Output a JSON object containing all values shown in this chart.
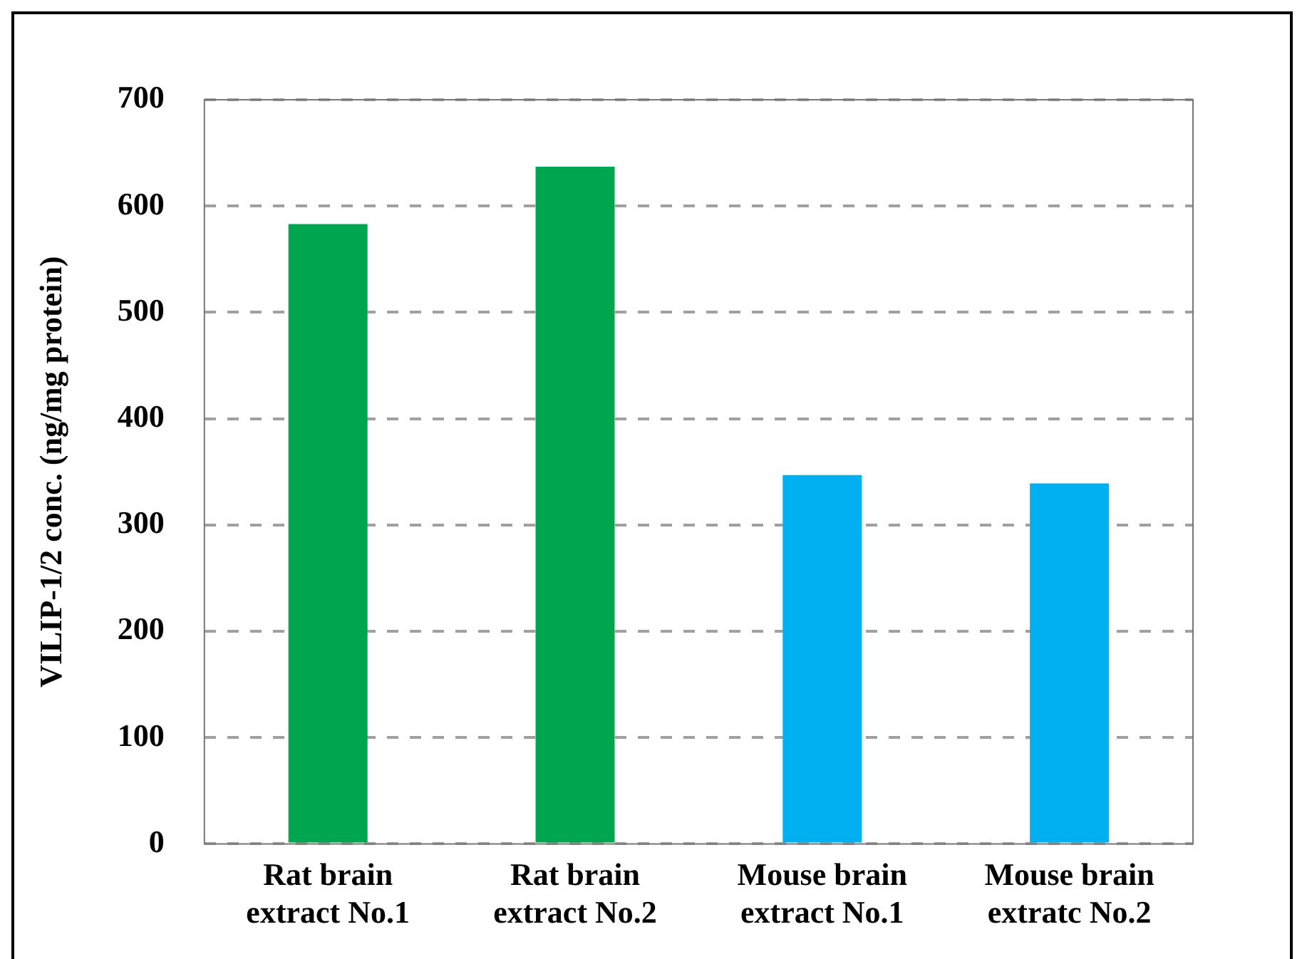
{
  "chart_data": {
    "type": "bar",
    "ylabel": "VILIP-1/2 conc. (ng/mg protein)",
    "categories": [
      "Rat brain\nextract No.1",
      "Rat brain\nextract No.2",
      "Mouse brain\nextract No.1",
      "Mouse brain\nextratc No.2"
    ],
    "values": [
      583,
      637,
      347,
      339
    ],
    "colors": [
      "#00a54f",
      "#00a54f",
      "#00b0f0",
      "#00b0f0"
    ],
    "ylim": [
      0,
      700
    ],
    "yticks": [
      0,
      100,
      200,
      300,
      400,
      500,
      600,
      700
    ],
    "grid": "y",
    "legend": false
  }
}
